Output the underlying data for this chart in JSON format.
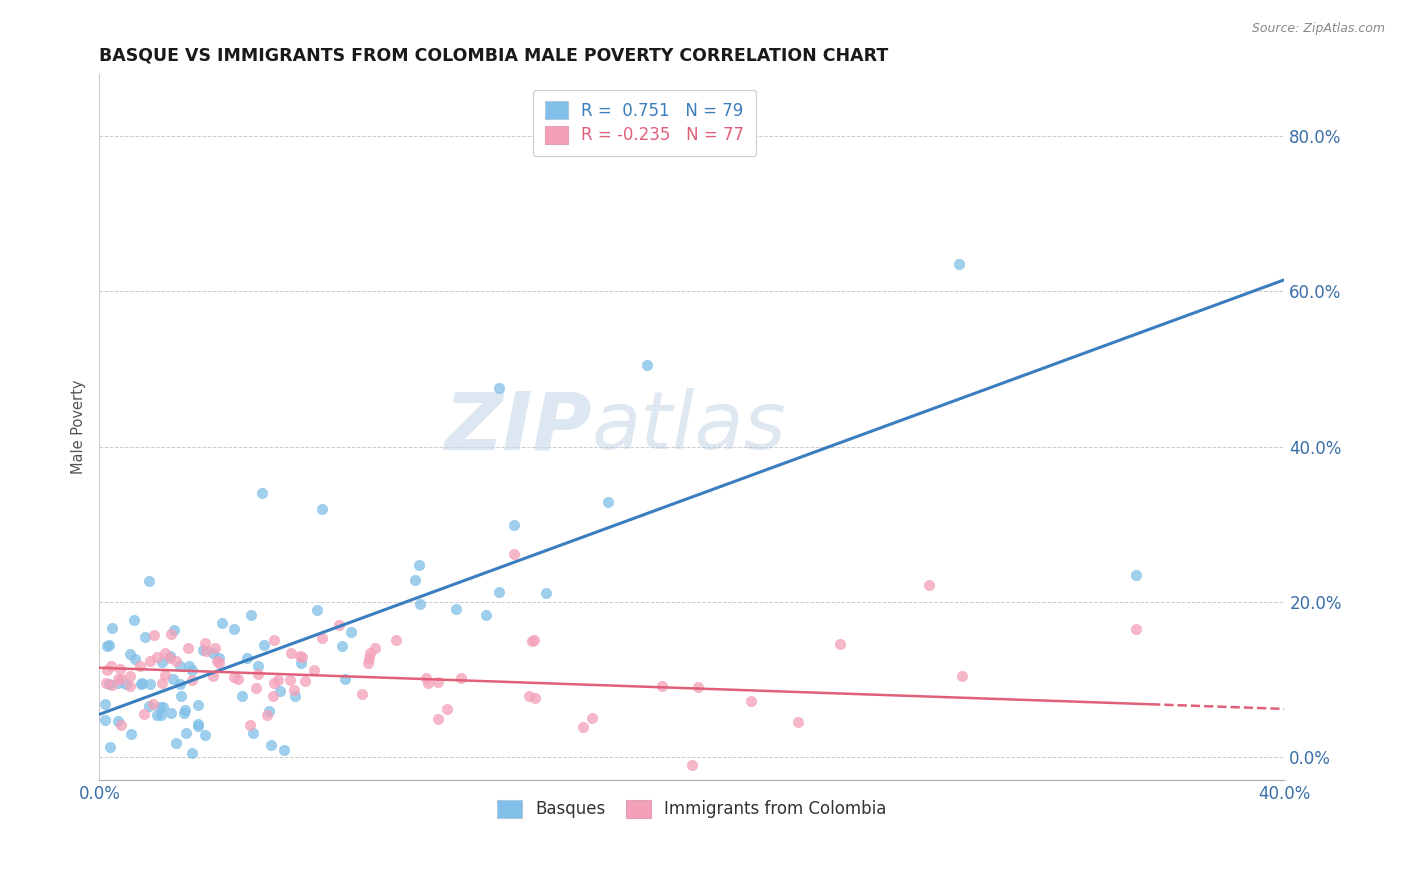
{
  "title": "BASQUE VS IMMIGRANTS FROM COLOMBIA MALE POVERTY CORRELATION CHART",
  "source": "Source: ZipAtlas.com",
  "ylabel": "Male Poverty",
  "yticks": [
    "0.0%",
    "20.0%",
    "40.0%",
    "60.0%",
    "80.0%"
  ],
  "ytick_vals": [
    0.0,
    0.2,
    0.4,
    0.6,
    0.8
  ],
  "xlim": [
    0.0,
    0.4
  ],
  "ylim": [
    -0.03,
    0.88
  ],
  "watermark_zip": "ZIP",
  "watermark_atlas": "atlas",
  "blue_color": "#7fbfe8",
  "pink_color": "#f4a0b8",
  "trendline_blue": "#3a7ebf",
  "trendline_pink": "#e0607a",
  "background": "#ffffff",
  "grid_color": "#cccccc",
  "blue_trendline_y0": 0.055,
  "blue_trendline_y1": 0.615,
  "pink_trendline_y0": 0.115,
  "pink_trendline_y1": 0.062,
  "pink_solid_xend": 0.355,
  "pink_dash_xstart": 0.355,
  "pink_dash_xend": 0.405
}
